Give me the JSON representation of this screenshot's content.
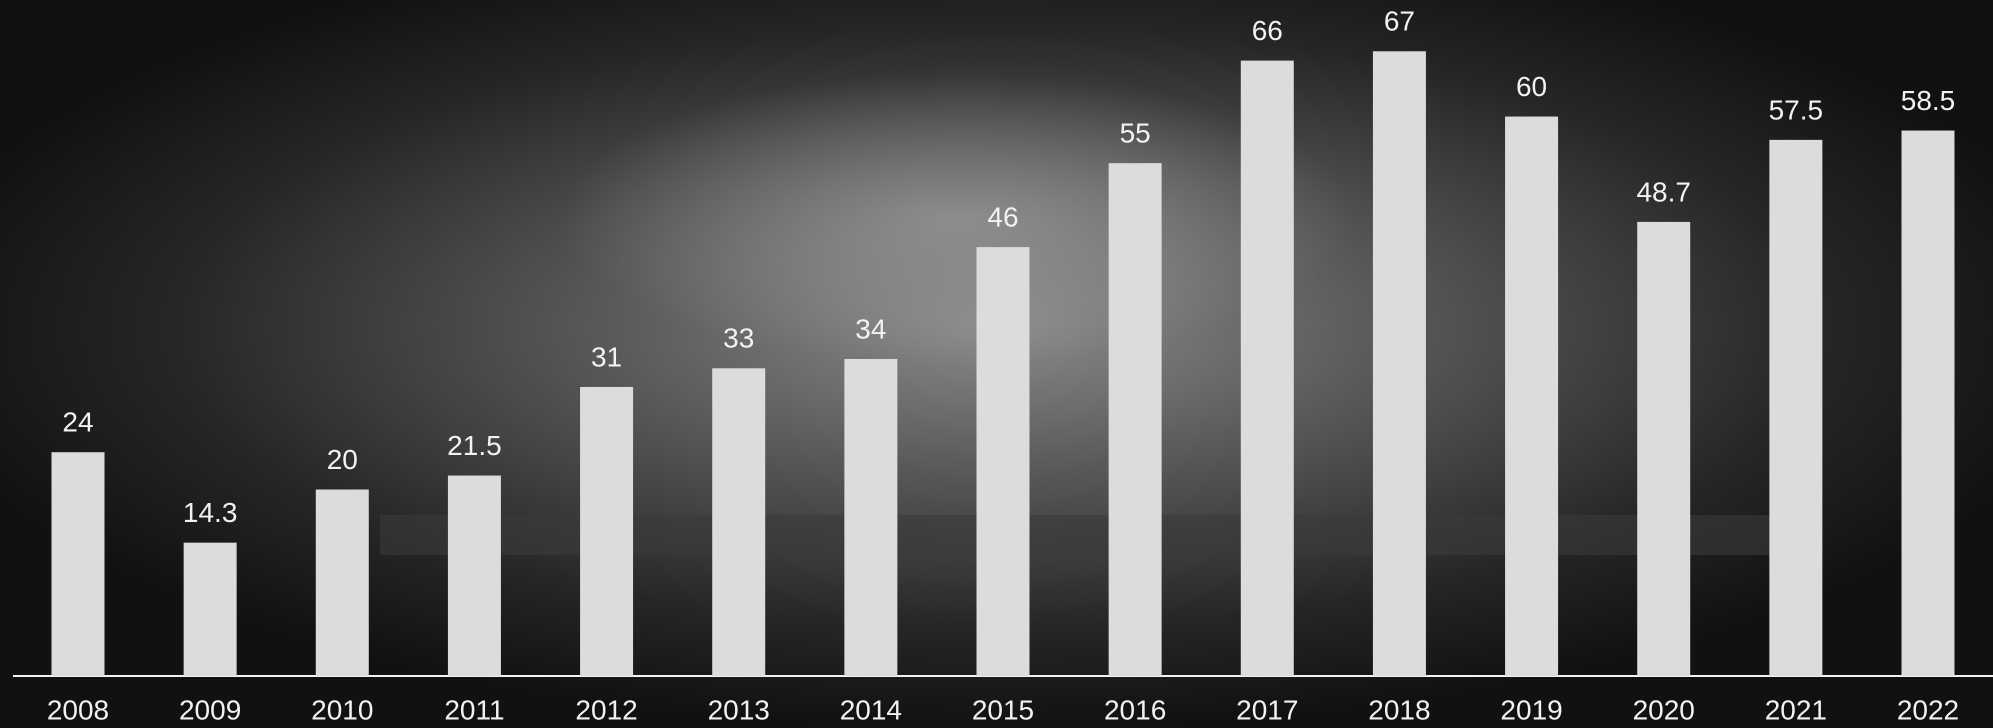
{
  "chart_data": {
    "type": "bar",
    "categories": [
      "2008",
      "2009",
      "2010",
      "2011",
      "2012",
      "2013",
      "2014",
      "2015",
      "2016",
      "2017",
      "2018",
      "2019",
      "2020",
      "2021",
      "2022"
    ],
    "values": [
      24,
      14.3,
      20,
      21.5,
      31,
      33,
      34,
      46,
      55,
      66,
      67,
      60,
      48.7,
      57.5,
      58.5
    ],
    "color": "#dcdcdc",
    "ylim": [
      0,
      72.5
    ]
  }
}
